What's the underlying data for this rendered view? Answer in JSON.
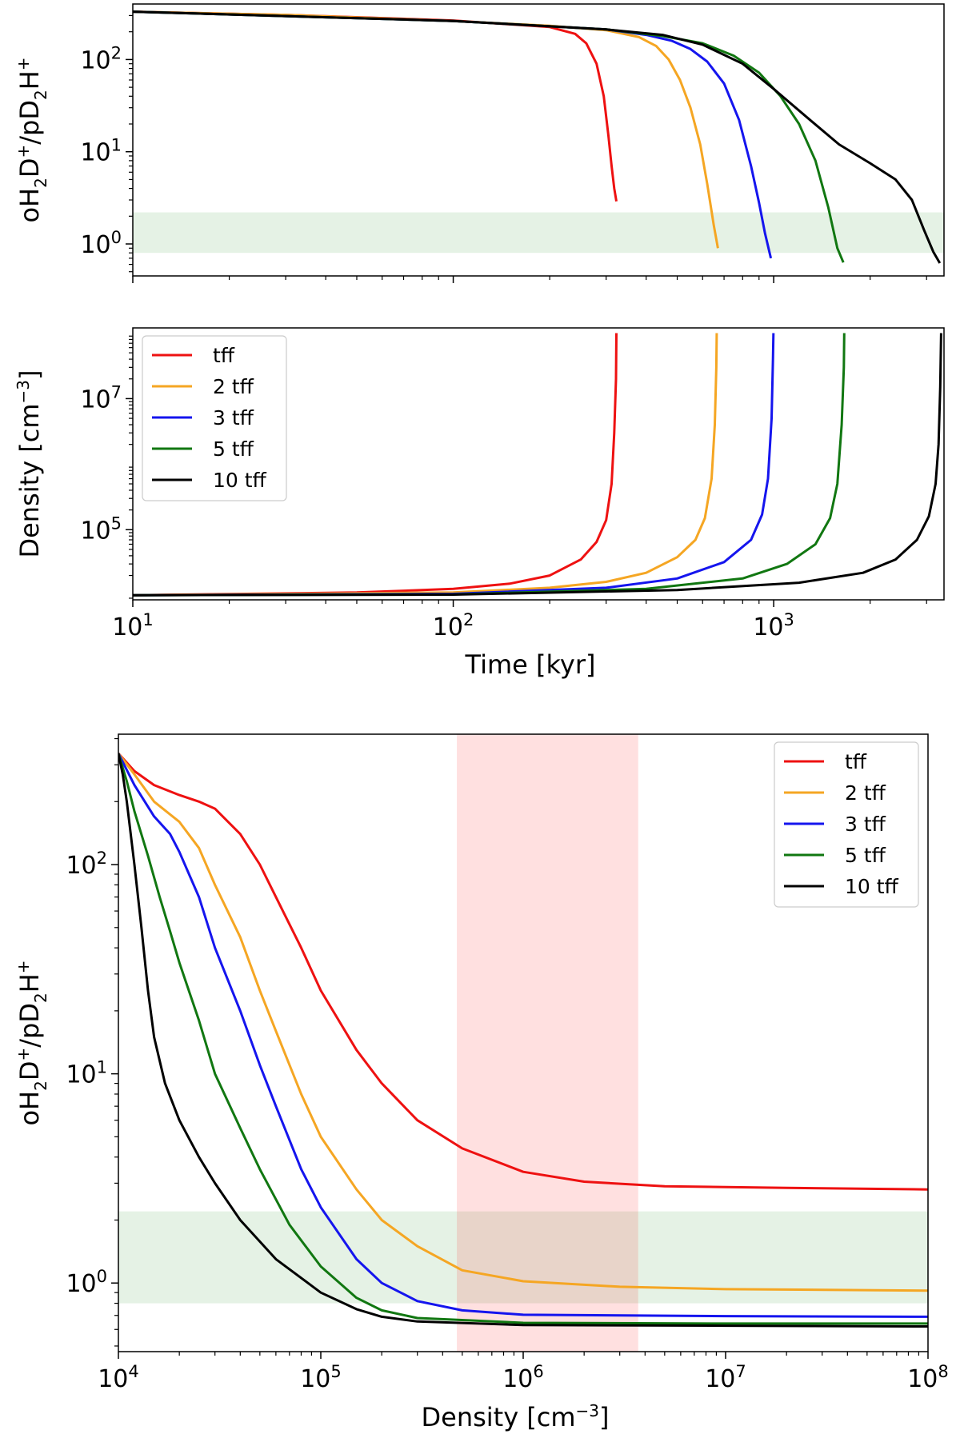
{
  "chart_data": [
    {
      "id": "top",
      "type": "line",
      "xscale": "log",
      "yscale": "log",
      "xlim": [
        10,
        3400
      ],
      "ylim": [
        0.45,
        400
      ],
      "xlabel": "",
      "ylabel_html": "oH2D+/pD2H+",
      "yticks": [
        {
          "v": 1,
          "m": "10",
          "e": "0"
        },
        {
          "v": 10,
          "m": "10",
          "e": "1"
        },
        {
          "v": 100,
          "m": "10",
          "e": "2"
        }
      ],
      "xticks": [
        10,
        100,
        1000
      ],
      "band_y": [
        0.8,
        2.2
      ],
      "series": [
        {
          "name": "tff",
          "color": "#ee1111",
          "points": [
            [
              10,
              330
            ],
            [
              30,
              305
            ],
            [
              100,
              265
            ],
            [
              200,
              225
            ],
            [
              240,
              190
            ],
            [
              260,
              150
            ],
            [
              280,
              90
            ],
            [
              295,
              40
            ],
            [
              305,
              15
            ],
            [
              312,
              7
            ],
            [
              318,
              4
            ],
            [
              323,
              2.9
            ]
          ]
        },
        {
          "name": "2 tff",
          "color": "#f5a623",
          "points": [
            [
              10,
              330
            ],
            [
              30,
              305
            ],
            [
              100,
              262
            ],
            [
              200,
              232
            ],
            [
              300,
              208
            ],
            [
              380,
              175
            ],
            [
              430,
              140
            ],
            [
              470,
              100
            ],
            [
              510,
              60
            ],
            [
              550,
              30
            ],
            [
              590,
              12
            ],
            [
              620,
              4.5
            ],
            [
              650,
              1.6
            ],
            [
              670,
              0.9
            ]
          ]
        },
        {
          "name": "3 tff",
          "color": "#1515ee",
          "points": [
            [
              10,
              330
            ],
            [
              100,
              262
            ],
            [
              300,
              212
            ],
            [
              400,
              185
            ],
            [
              480,
              160
            ],
            [
              550,
              130
            ],
            [
              620,
              95
            ],
            [
              700,
              55
            ],
            [
              780,
              22
            ],
            [
              850,
              7
            ],
            [
              900,
              2.8
            ],
            [
              940,
              1.3
            ],
            [
              980,
              0.7
            ]
          ]
        },
        {
          "name": "5 tff",
          "color": "#117711",
          "points": [
            [
              10,
              330
            ],
            [
              100,
              262
            ],
            [
              300,
              212
            ],
            [
              450,
              180
            ],
            [
              600,
              150
            ],
            [
              750,
              110
            ],
            [
              900,
              72
            ],
            [
              1050,
              40
            ],
            [
              1200,
              20
            ],
            [
              1350,
              8
            ],
            [
              1480,
              2.5
            ],
            [
              1580,
              0.9
            ],
            [
              1650,
              0.63
            ]
          ]
        },
        {
          "name": "10 tff",
          "color": "#000000",
          "points": [
            [
              10,
              330
            ],
            [
              100,
              262
            ],
            [
              300,
              212
            ],
            [
              450,
              185
            ],
            [
              600,
              145
            ],
            [
              800,
              90
            ],
            [
              1000,
              48
            ],
            [
              1300,
              22
            ],
            [
              1600,
              12
            ],
            [
              2000,
              7.5
            ],
            [
              2400,
              5
            ],
            [
              2700,
              3
            ],
            [
              2950,
              1.4
            ],
            [
              3150,
              0.82
            ],
            [
              3300,
              0.62
            ]
          ]
        }
      ]
    },
    {
      "id": "middle",
      "type": "line",
      "xscale": "log",
      "yscale": "log",
      "xlim": [
        10,
        3400
      ],
      "ylim": [
        8500,
        120000000
      ],
      "xlabel": "Time [kyr]",
      "ylabel_html": "Density [cm-3]",
      "yticks": [
        {
          "v": 100000,
          "m": "10",
          "e": "5"
        },
        {
          "v": 10000000,
          "m": "10",
          "e": "7"
        }
      ],
      "xticks": [
        {
          "v": 10,
          "m": "10",
          "e": "1"
        },
        {
          "v": 100,
          "m": "10",
          "e": "2"
        },
        {
          "v": 1000,
          "m": "10",
          "e": "3"
        }
      ],
      "series": [
        {
          "name": "tff",
          "color": "#ee1111",
          "points": [
            [
              10,
              10000
            ],
            [
              50,
              11000
            ],
            [
              100,
              12500
            ],
            [
              150,
              15000
            ],
            [
              200,
              20000
            ],
            [
              250,
              35000
            ],
            [
              280,
              65000
            ],
            [
              300,
              140000
            ],
            [
              312,
              500000
            ],
            [
              318,
              3000000
            ],
            [
              322,
              20000000
            ],
            [
              323,
              100000000
            ]
          ]
        },
        {
          "name": "2 tff",
          "color": "#f5a623",
          "points": [
            [
              10,
              10000
            ],
            [
              100,
              11000
            ],
            [
              200,
              13000
            ],
            [
              300,
              16000
            ],
            [
              400,
              22000
            ],
            [
              500,
              38000
            ],
            [
              570,
              70000
            ],
            [
              610,
              150000
            ],
            [
              640,
              600000
            ],
            [
              655,
              4000000
            ],
            [
              662,
              30000000
            ],
            [
              664,
              100000000
            ]
          ]
        },
        {
          "name": "3 tff",
          "color": "#1515ee",
          "points": [
            [
              10,
              10000
            ],
            [
              100,
              10500
            ],
            [
              300,
              13000
            ],
            [
              500,
              18000
            ],
            [
              700,
              32000
            ],
            [
              850,
              70000
            ],
            [
              920,
              170000
            ],
            [
              960,
              600000
            ],
            [
              985,
              5000000
            ],
            [
              995,
              40000000
            ],
            [
              998,
              100000000
            ]
          ]
        },
        {
          "name": "5 tff",
          "color": "#117711",
          "points": [
            [
              10,
              10000
            ],
            [
              100,
              10300
            ],
            [
              400,
              12500
            ],
            [
              800,
              18000
            ],
            [
              1100,
              30000
            ],
            [
              1350,
              60000
            ],
            [
              1500,
              150000
            ],
            [
              1580,
              500000
            ],
            [
              1630,
              4000000
            ],
            [
              1655,
              30000000
            ],
            [
              1660,
              100000000
            ]
          ]
        },
        {
          "name": "10 tff",
          "color": "#000000",
          "points": [
            [
              10,
              10000
            ],
            [
              100,
              10200
            ],
            [
              500,
              12000
            ],
            [
              1200,
              15500
            ],
            [
              1900,
              22000
            ],
            [
              2400,
              35000
            ],
            [
              2800,
              70000
            ],
            [
              3050,
              160000
            ],
            [
              3200,
              500000
            ],
            [
              3270,
              2000000
            ],
            [
              3310,
              15000000
            ],
            [
              3330,
              100000000
            ]
          ]
        }
      ],
      "legend": {
        "placement": "upper-left",
        "entries": [
          "tff",
          "2 tff",
          "3 tff",
          "5 tff",
          "10 tff"
        ]
      }
    },
    {
      "id": "bottom",
      "type": "line",
      "xscale": "log",
      "yscale": "log",
      "xlim": [
        10000,
        100000000
      ],
      "ylim": [
        0.47,
        420
      ],
      "xlabel": "Density [cm-3]",
      "ylabel_html": "oH2D+/pD2H+",
      "yticks": [
        {
          "v": 1,
          "m": "10",
          "e": "0"
        },
        {
          "v": 10,
          "m": "10",
          "e": "1"
        },
        {
          "v": 100,
          "m": "10",
          "e": "2"
        }
      ],
      "xticks": [
        {
          "v": 10000,
          "m": "10",
          "e": "4"
        },
        {
          "v": 100000,
          "m": "10",
          "e": "5"
        },
        {
          "v": 1000000,
          "m": "10",
          "e": "6"
        },
        {
          "v": 10000000,
          "m": "10",
          "e": "7"
        },
        {
          "v": 100000000,
          "m": "10",
          "e": "8"
        }
      ],
      "band_y": [
        0.8,
        2.2
      ],
      "band_x": [
        470000,
        3700000
      ],
      "series": [
        {
          "name": "tff",
          "color": "#ee1111",
          "points": [
            [
              10000,
              340
            ],
            [
              12000,
              280
            ],
            [
              15000,
              240
            ],
            [
              20000,
              215
            ],
            [
              25000,
              200
            ],
            [
              30000,
              185
            ],
            [
              40000,
              140
            ],
            [
              50000,
              100
            ],
            [
              60000,
              70
            ],
            [
              80000,
              40
            ],
            [
              100000,
              25
            ],
            [
              150000,
              13
            ],
            [
              200000,
              9
            ],
            [
              300000,
              6
            ],
            [
              500000,
              4.4
            ],
            [
              1000000,
              3.4
            ],
            [
              2000000,
              3.05
            ],
            [
              5000000,
              2.9
            ],
            [
              20000000,
              2.85
            ],
            [
              100000000,
              2.8
            ]
          ]
        },
        {
          "name": "2 tff",
          "color": "#f5a623",
          "points": [
            [
              10000,
              340
            ],
            [
              12000,
              270
            ],
            [
              15000,
              200
            ],
            [
              20000,
              160
            ],
            [
              25000,
              120
            ],
            [
              30000,
              80
            ],
            [
              40000,
              45
            ],
            [
              50000,
              25
            ],
            [
              60000,
              16
            ],
            [
              80000,
              8
            ],
            [
              100000,
              5
            ],
            [
              150000,
              2.8
            ],
            [
              200000,
              2
            ],
            [
              300000,
              1.5
            ],
            [
              500000,
              1.15
            ],
            [
              1000000,
              1.02
            ],
            [
              3000000,
              0.96
            ],
            [
              10000000,
              0.935
            ],
            [
              100000000,
              0.92
            ]
          ]
        },
        {
          "name": "3 tff",
          "color": "#1515ee",
          "points": [
            [
              10000,
              340
            ],
            [
              12000,
              240
            ],
            [
              15000,
              170
            ],
            [
              18000,
              140
            ],
            [
              20000,
              115
            ],
            [
              25000,
              70
            ],
            [
              30000,
              40
            ],
            [
              40000,
              20
            ],
            [
              50000,
              11
            ],
            [
              60000,
              7
            ],
            [
              80000,
              3.5
            ],
            [
              100000,
              2.3
            ],
            [
              150000,
              1.3
            ],
            [
              200000,
              1
            ],
            [
              300000,
              0.82
            ],
            [
              500000,
              0.74
            ],
            [
              1000000,
              0.705
            ],
            [
              10000000,
              0.695
            ],
            [
              100000000,
              0.69
            ]
          ]
        },
        {
          "name": "5 tff",
          "color": "#117711",
          "points": [
            [
              10000,
              340
            ],
            [
              11000,
              250
            ],
            [
              12000,
              180
            ],
            [
              14000,
              110
            ],
            [
              16000,
              70
            ],
            [
              18000,
              48
            ],
            [
              20000,
              34
            ],
            [
              25000,
              18
            ],
            [
              30000,
              10
            ],
            [
              40000,
              5.5
            ],
            [
              50000,
              3.5
            ],
            [
              70000,
              1.9
            ],
            [
              100000,
              1.2
            ],
            [
              150000,
              0.85
            ],
            [
              200000,
              0.74
            ],
            [
              300000,
              0.68
            ],
            [
              1000000,
              0.645
            ],
            [
              10000000,
              0.64
            ],
            [
              100000000,
              0.64
            ]
          ]
        },
        {
          "name": "10 tff",
          "color": "#000000",
          "points": [
            [
              10000,
              340
            ],
            [
              10500,
              270
            ],
            [
              11000,
              200
            ],
            [
              12000,
              100
            ],
            [
              13000,
              50
            ],
            [
              14000,
              25
            ],
            [
              15000,
              15
            ],
            [
              17000,
              9
            ],
            [
              20000,
              6
            ],
            [
              25000,
              4
            ],
            [
              30000,
              3
            ],
            [
              40000,
              2
            ],
            [
              60000,
              1.3
            ],
            [
              100000,
              0.9
            ],
            [
              150000,
              0.75
            ],
            [
              200000,
              0.69
            ],
            [
              300000,
              0.655
            ],
            [
              1000000,
              0.63
            ],
            [
              10000000,
              0.625
            ],
            [
              100000000,
              0.62
            ]
          ]
        }
      ],
      "legend": {
        "placement": "upper-right",
        "entries": [
          "tff",
          "2 tff",
          "3 tff",
          "5 tff",
          "10 tff"
        ]
      }
    }
  ]
}
